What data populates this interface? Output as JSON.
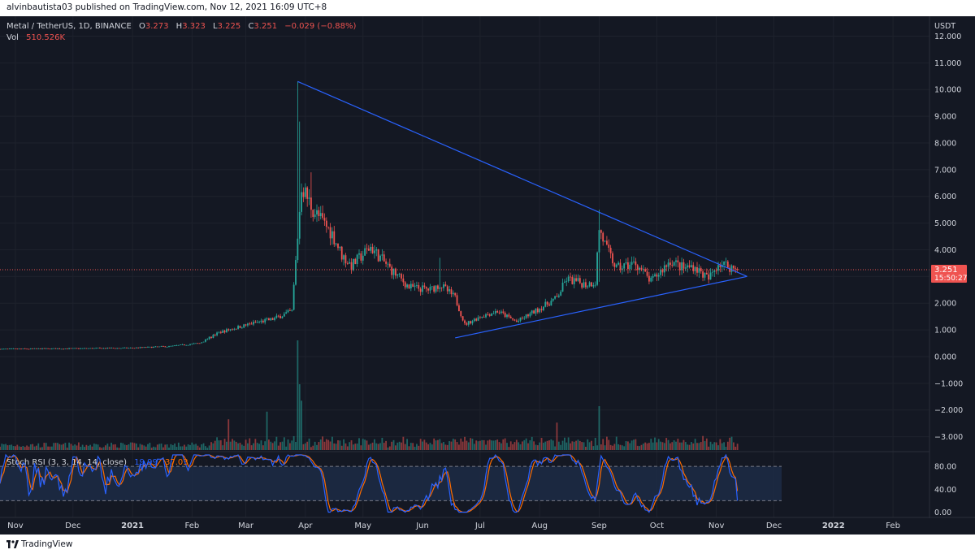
{
  "header": {
    "text": "alvinbautista03 published on TradingView.com, Nov 12, 2021 16:09 UTC+8"
  },
  "footer": {
    "brand": "TradingView"
  },
  "colors": {
    "background": "#141823",
    "up": "#26a69a",
    "down": "#ef5350",
    "trendline": "#2962ff",
    "rsi_k": "#2962ff",
    "rsi_d": "#ff6d00",
    "price_line": "#ef5350"
  },
  "legend": {
    "symbol": "Metal / TetherUS, 1D, BINANCE",
    "o_label": "O",
    "o_value": "3.273",
    "h_label": "H",
    "h_value": "3.323",
    "l_label": "L",
    "l_value": "3.225",
    "c_label": "C",
    "c_value": "3.251",
    "change": "−0.029 (−0.88%)",
    "vol_label": "Vol",
    "vol_value": "510.526K"
  },
  "price_badge": {
    "price": "3.251",
    "countdown": "15:50:27"
  },
  "rsi_legend": {
    "title": "Stoch RSI (3, 3, 14, 14, close)",
    "k_value": "19.99",
    "d_value": "37.03"
  },
  "chart_data": {
    "type": "candlestick",
    "currency": "USDT",
    "ylim": [
      -3.5,
      12.5
    ],
    "y_ticks": [
      "12.000",
      "11.000",
      "10.000",
      "9.000",
      "8.000",
      "7.000",
      "6.000",
      "5.000",
      "4.000",
      "3.000",
      "2.000",
      "1.000",
      "0.000",
      "−1.000",
      "−2.000",
      "−3.000"
    ],
    "x_ticks": [
      "Nov",
      "Dec",
      "2021",
      "Feb",
      "Mar",
      "Apr",
      "May",
      "Jun",
      "Jul",
      "Aug",
      "Sep",
      "Oct",
      "Nov",
      "Dec",
      "2022",
      "Feb"
    ],
    "x_range": [
      "2020-10-24",
      "2022-02-20"
    ],
    "last_close": 3.251,
    "series_anchors": [
      {
        "d": "2020-10-24",
        "v": 0.28
      },
      {
        "d": "2020-11-30",
        "v": 0.3
      },
      {
        "d": "2020-12-31",
        "v": 0.32
      },
      {
        "d": "2021-01-20",
        "v": 0.38
      },
      {
        "d": "2021-02-05",
        "v": 0.5
      },
      {
        "d": "2021-02-15",
        "v": 0.9
      },
      {
        "d": "2021-02-25",
        "v": 1.1
      },
      {
        "d": "2021-03-05",
        "v": 1.25
      },
      {
        "d": "2021-03-15",
        "v": 1.4
      },
      {
        "d": "2021-03-25",
        "v": 1.7
      },
      {
        "d": "2021-03-28",
        "v": 4.5
      },
      {
        "d": "2021-03-30",
        "v": 6.4
      },
      {
        "d": "2021-04-05",
        "v": 5.5
      },
      {
        "d": "2021-04-15",
        "v": 4.6
      },
      {
        "d": "2021-04-20",
        "v": 3.8
      },
      {
        "d": "2021-04-25",
        "v": 3.4
      },
      {
        "d": "2021-05-05",
        "v": 4.1
      },
      {
        "d": "2021-05-15",
        "v": 3.3
      },
      {
        "d": "2021-05-25",
        "v": 2.6
      },
      {
        "d": "2021-06-05",
        "v": 2.5
      },
      {
        "d": "2021-06-10",
        "v": 2.7
      },
      {
        "d": "2021-06-18",
        "v": 2.2
      },
      {
        "d": "2021-06-23",
        "v": 1.2
      },
      {
        "d": "2021-07-01",
        "v": 1.5
      },
      {
        "d": "2021-07-10",
        "v": 1.7
      },
      {
        "d": "2021-07-20",
        "v": 1.3
      },
      {
        "d": "2021-08-01",
        "v": 1.8
      },
      {
        "d": "2021-08-10",
        "v": 2.2
      },
      {
        "d": "2021-08-15",
        "v": 2.9
      },
      {
        "d": "2021-08-25",
        "v": 2.7
      },
      {
        "d": "2021-08-30",
        "v": 2.8
      },
      {
        "d": "2021-09-01",
        "v": 4.8
      },
      {
        "d": "2021-09-05",
        "v": 4.0
      },
      {
        "d": "2021-09-10",
        "v": 3.3
      },
      {
        "d": "2021-09-20",
        "v": 3.5
      },
      {
        "d": "2021-09-28",
        "v": 2.8
      },
      {
        "d": "2021-10-08",
        "v": 3.6
      },
      {
        "d": "2021-10-15",
        "v": 3.3
      },
      {
        "d": "2021-10-20",
        "v": 3.4
      },
      {
        "d": "2021-10-28",
        "v": 2.9
      },
      {
        "d": "2021-11-02",
        "v": 3.5
      },
      {
        "d": "2021-11-07",
        "v": 3.4
      },
      {
        "d": "2021-11-12",
        "v": 3.251
      }
    ],
    "wick_spikes": [
      {
        "d": "2021-03-28",
        "high": 10.3,
        "low": 4.3
      },
      {
        "d": "2021-03-29",
        "high": 8.8,
        "low": 5.0
      },
      {
        "d": "2021-04-04",
        "high": 6.9,
        "low": 5.2
      },
      {
        "d": "2021-09-01",
        "high": 5.5,
        "low": 2.8
      },
      {
        "d": "2021-06-10",
        "high": 3.7,
        "low": 2.4
      }
    ],
    "volume_spikes": [
      {
        "d": "2021-03-28",
        "v": 1.0
      },
      {
        "d": "2021-03-29",
        "v": 0.6
      },
      {
        "d": "2021-03-30",
        "v": 0.45
      },
      {
        "d": "2021-09-01",
        "v": 0.4
      },
      {
        "d": "2021-02-20",
        "v": 0.28
      },
      {
        "d": "2021-03-12",
        "v": 0.35
      },
      {
        "d": "2021-08-10",
        "v": 0.25
      }
    ],
    "trendlines": [
      {
        "from": {
          "d": "2021-03-28",
          "v": 10.3
        },
        "to": {
          "d": "2021-11-17",
          "v": 3.0
        }
      },
      {
        "from": {
          "d": "2021-06-18",
          "v": 0.7
        },
        "to": {
          "d": "2021-11-17",
          "v": 3.0
        }
      }
    ],
    "rsi": {
      "ylim": [
        -5,
        100
      ],
      "y_ticks": [
        "80.00",
        "40.00",
        "0.00"
      ],
      "bands": [
        20,
        80
      ],
      "k_last": 19.99,
      "d_last": 37.03
    }
  }
}
